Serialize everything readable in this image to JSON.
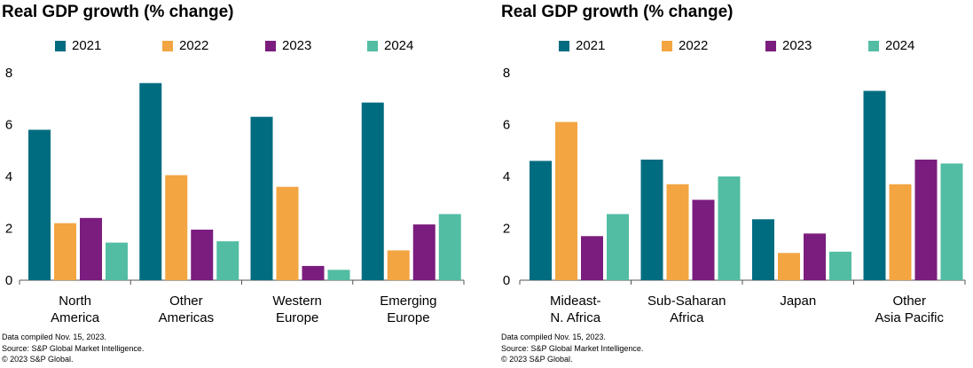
{
  "colors": {
    "2021": "#006c80",
    "2022": "#f3a542",
    "2023": "#7b1d7e",
    "2024": "#52bda3",
    "axis": "#555555"
  },
  "chart_data": [
    {
      "type": "bar",
      "title": "Real GDP growth (% change)",
      "categories": [
        [
          "North",
          "America"
        ],
        [
          "Other",
          "Americas"
        ],
        [
          "Western",
          "Europe"
        ],
        [
          "Emerging",
          "Europe"
        ]
      ],
      "series": [
        {
          "name": "2021",
          "values": [
            5.8,
            7.6,
            6.3,
            6.85
          ]
        },
        {
          "name": "2022",
          "values": [
            2.2,
            4.05,
            3.6,
            1.15
          ]
        },
        {
          "name": "2023",
          "values": [
            2.4,
            1.95,
            0.55,
            2.15
          ]
        },
        {
          "name": "2024",
          "values": [
            1.45,
            1.5,
            0.4,
            2.55
          ]
        }
      ],
      "ylim": [
        0,
        8
      ],
      "yticks": [
        "0",
        "2",
        "4",
        "6",
        "8"
      ],
      "notes": [
        "Data compiled Nov. 15, 2023.",
        "Source: S&P Global Market Intelligence.",
        "© 2023 S&P Global."
      ]
    },
    {
      "type": "bar",
      "title": "Real GDP growth (% change)",
      "categories": [
        [
          "Mideast-",
          "N. Africa"
        ],
        [
          "Sub-Saharan",
          "Africa"
        ],
        [
          "Japan"
        ],
        [
          "Other",
          "Asia Pacific"
        ]
      ],
      "series": [
        {
          "name": "2021",
          "values": [
            4.6,
            4.65,
            2.35,
            7.3
          ]
        },
        {
          "name": "2022",
          "values": [
            6.1,
            3.7,
            1.05,
            3.7
          ]
        },
        {
          "name": "2023",
          "values": [
            1.7,
            3.1,
            1.8,
            4.65
          ]
        },
        {
          "name": "2024",
          "values": [
            2.55,
            4.0,
            1.1,
            4.5
          ]
        }
      ],
      "ylim": [
        0,
        8
      ],
      "yticks": [
        "0",
        "2",
        "4",
        "6",
        "8"
      ],
      "notes": [
        "Data compiled Nov. 15, 2023.",
        "Source: S&P Global Market Intelligence.",
        "© 2023 S&P Global."
      ]
    }
  ]
}
